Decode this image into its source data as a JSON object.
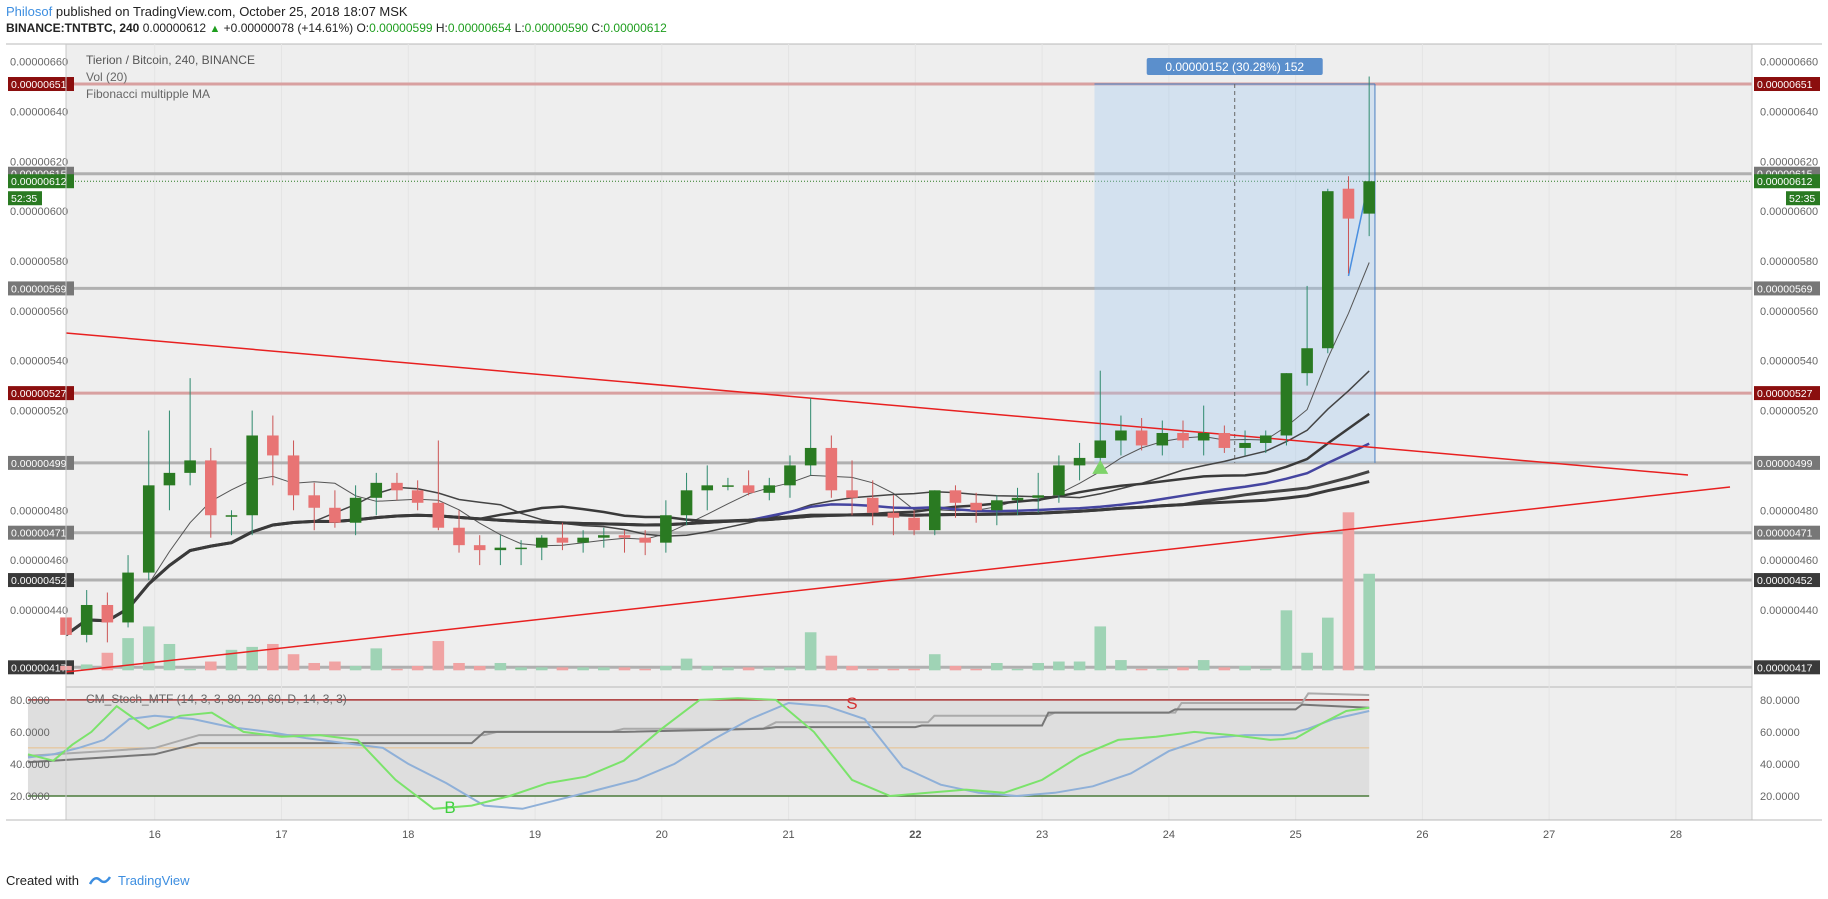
{
  "header": {
    "author": "Philosof",
    "published": "published on TradingView.com, October 25, 2018 18:07 MSK",
    "symbol": "BINANCE:TNTBTC, 240",
    "last": "0.00000612",
    "change": "+0.00000078 (+14.61%)",
    "o_label": "O:",
    "o": "0.00000599",
    "h_label": "H:",
    "h": "0.00000654",
    "l_label": "L:",
    "l": "0.00000590",
    "c_label": "C:",
    "c": "0.00000612"
  },
  "legend": {
    "title": "Tierion / Bitcoin, 240, BINANCE",
    "vol": "Vol (20)",
    "ma": "Fibonacci multipple MA",
    "stoch": "CM_Stoch_MTF (14, 3, 3, 80, 20, 60, D, 14, 3, 3)"
  },
  "measure_label": "0.00000152 (30.28%) 152",
  "countdown": "52:35",
  "footer": {
    "created": "Created with",
    "brand": "TradingView"
  },
  "colors": {
    "up": "#2a7a22",
    "down": "#e87474",
    "up_vol": "#9fd3b5",
    "down_vol": "#f0a3a3",
    "trend": "#e82020",
    "ma_blue": "#4545a0",
    "dark_red_tag": "#8b0e0e",
    "price_tag_green": "#2a7a22"
  },
  "chart_data": [
    {
      "type": "candlestick",
      "title": "Tierion / Bitcoin, 240, BINANCE",
      "x_ticks": [
        {
          "t": 1,
          "label": "16"
        },
        {
          "t": 2,
          "label": "17"
        },
        {
          "t": 3,
          "label": "18"
        },
        {
          "t": 4,
          "label": "19"
        },
        {
          "t": 5,
          "label": "20"
        },
        {
          "t": 6,
          "label": "21"
        },
        {
          "t": 7,
          "label": "22"
        },
        {
          "t": 8,
          "label": "23"
        },
        {
          "t": 9,
          "label": "24"
        },
        {
          "t": 10,
          "label": "25"
        },
        {
          "t": 11,
          "label": "26"
        },
        {
          "t": 12,
          "label": "27"
        },
        {
          "t": 13,
          "label": "28"
        }
      ],
      "x_range": [
        0.3,
        13.6
      ],
      "y_range": [
        4.095e-06,
        6.6705e-06
      ],
      "y_ticks": [
        "0.00000440",
        "0.00000460",
        "0.00000480",
        "0.00000520",
        "0.00000540",
        "0.00000560",
        "0.00000580",
        "0.00000600",
        "0.00000620",
        "0.00000640",
        "0.00000660"
      ],
      "y_tick_values": [
        440,
        460,
        480,
        520,
        540,
        560,
        580,
        600,
        620,
        640,
        660
      ],
      "horizontal_levels": [
        {
          "value": 651,
          "label": "0.00000651",
          "tag": "darkred"
        },
        {
          "value": 615,
          "label": "0.00000615",
          "tag": "gray"
        },
        {
          "value": 612,
          "label": "0.00000612",
          "tag": "green"
        },
        {
          "value": 569,
          "label": "0.00000569",
          "tag": "gray"
        },
        {
          "value": 527,
          "label": "0.00000527",
          "tag": "darkred"
        },
        {
          "value": 499,
          "label": "0.00000499",
          "tag": "gray"
        },
        {
          "value": 471,
          "label": "0.00000471",
          "tag": "gray"
        },
        {
          "value": 452,
          "label": "0.00000452",
          "tag": "dark"
        },
        {
          "value": 417,
          "label": "0.00000417",
          "tag": "dark"
        }
      ],
      "candles_ohlc_e8": [
        [
          437,
          445,
          428,
          430
        ],
        [
          430,
          448,
          427,
          442
        ],
        [
          442,
          447,
          427,
          435
        ],
        [
          435,
          462,
          433,
          455
        ],
        [
          455,
          512,
          452,
          490
        ],
        [
          490,
          520,
          480,
          495
        ],
        [
          495,
          533,
          490,
          500
        ],
        [
          500,
          505,
          469,
          478
        ],
        [
          478,
          480,
          470,
          478
        ],
        [
          478,
          520,
          470,
          510
        ],
        [
          510,
          518,
          490,
          502
        ],
        [
          502,
          508,
          480,
          486
        ],
        [
          486,
          491,
          472,
          481
        ],
        [
          481,
          488,
          473,
          475
        ],
        [
          475,
          490,
          470,
          485
        ],
        [
          485,
          495,
          478,
          491
        ],
        [
          491,
          495,
          484,
          488
        ],
        [
          488,
          492,
          480,
          483
        ],
        [
          483,
          508,
          472,
          473
        ],
        [
          473,
          480,
          463,
          466
        ],
        [
          466,
          470,
          458,
          464
        ],
        [
          464,
          470,
          458,
          465
        ],
        [
          465,
          468,
          458,
          465
        ],
        [
          465,
          470,
          460,
          469
        ],
        [
          469,
          475,
          464,
          467
        ],
        [
          467,
          472,
          463,
          469
        ],
        [
          469,
          473,
          465,
          470
        ],
        [
          470,
          472,
          463,
          469
        ],
        [
          469,
          472,
          462,
          467
        ],
        [
          467,
          484,
          463,
          478
        ],
        [
          478,
          495,
          474,
          488
        ],
        [
          488,
          498,
          480,
          490
        ],
        [
          490,
          493,
          488,
          490
        ],
        [
          490,
          496,
          486,
          487
        ],
        [
          487,
          493,
          484,
          490
        ],
        [
          490,
          502,
          485,
          498
        ],
        [
          498,
          525,
          494,
          505
        ],
        [
          505,
          510,
          485,
          488
        ],
        [
          488,
          500,
          478,
          485
        ],
        [
          485,
          492,
          474,
          479
        ],
        [
          479,
          486,
          470,
          477
        ],
        [
          477,
          480,
          470,
          472
        ],
        [
          472,
          488,
          470,
          488
        ],
        [
          488,
          490,
          477,
          483
        ],
        [
          483,
          487,
          475,
          480
        ],
        [
          480,
          486,
          474,
          484
        ],
        [
          484,
          489,
          478,
          485
        ],
        [
          485,
          495,
          479,
          486
        ],
        [
          486,
          502,
          483,
          498
        ],
        [
          498,
          507,
          492,
          501
        ],
        [
          501,
          536,
          497,
          508
        ],
        [
          508,
          518,
          502,
          512
        ],
        [
          512,
          517,
          504,
          506
        ],
        [
          506,
          516,
          502,
          511
        ],
        [
          511,
          516,
          505,
          508
        ],
        [
          508,
          522,
          502,
          511
        ],
        [
          511,
          514,
          503,
          505
        ],
        [
          505,
          512,
          502,
          507
        ],
        [
          507,
          512,
          503,
          510
        ],
        [
          510,
          535,
          506,
          535
        ],
        [
          535,
          570,
          530,
          545
        ],
        [
          545,
          609,
          543,
          608
        ],
        [
          609,
          614,
          575,
          597
        ],
        [
          599,
          654,
          590,
          612
        ]
      ],
      "volume_raw": [
        3,
        4,
        12,
        22,
        30,
        18,
        1,
        6,
        14,
        16,
        18,
        11,
        5,
        6,
        3,
        15,
        1,
        3,
        20,
        5,
        3,
        5,
        2,
        2,
        2,
        2,
        2,
        2,
        1,
        3,
        8,
        3,
        2,
        2,
        2,
        2,
        26,
        10,
        3,
        1,
        1,
        1,
        11,
        3,
        1,
        5,
        1,
        5,
        6,
        6,
        30,
        7,
        1,
        1,
        2,
        7,
        2,
        3,
        1,
        41,
        12,
        36,
        108,
        66
      ]
    },
    {
      "type": "line",
      "title": "CM_Stoch_MTF (14, 3, 3, 80, 20, 60, D, 14, 3, 3)",
      "y_range": [
        5,
        88
      ],
      "y_ticks": [
        "20.0000",
        "40.0000",
        "60.0000",
        "80.0000"
      ],
      "y_tick_values": [
        20,
        40,
        60,
        80
      ],
      "levels": [
        80,
        50,
        20
      ],
      "markers": [
        {
          "label": "B",
          "t": 3.33,
          "value": 13
        },
        {
          "label": "S",
          "t": 6.5,
          "value": 78
        }
      ],
      "series": [
        {
          "name": "",
          "color": "#7be36b",
          "x": [
            0.0,
            0.2,
            0.35,
            0.5,
            0.7,
            0.95,
            1.2,
            1.45,
            1.7,
            2.0,
            2.3,
            2.6,
            2.9,
            3.2,
            3.5,
            3.8,
            4.1,
            4.4,
            4.7,
            5.0,
            5.3,
            5.6,
            5.9,
            6.2,
            6.5,
            6.8,
            7.1,
            7.4,
            7.7,
            8.0,
            8.3,
            8.6,
            8.9,
            9.2,
            9.5,
            9.8,
            10.0,
            10.2,
            10.4,
            10.58
          ],
          "values": [
            46,
            42,
            52,
            60,
            76,
            62,
            70,
            72,
            60,
            57,
            58,
            55,
            30,
            12,
            14,
            20,
            28,
            32,
            42,
            62,
            80,
            81,
            80,
            60,
            30,
            20,
            22,
            24,
            22,
            30,
            45,
            55,
            57,
            60,
            58,
            55,
            56,
            65,
            73,
            75
          ]
        },
        {
          "name": "",
          "color": "#8fb0d8",
          "x": [
            0.0,
            0.2,
            0.4,
            0.6,
            0.8,
            1.0,
            1.3,
            1.6,
            1.9,
            2.2,
            2.5,
            2.8,
            3.0,
            3.3,
            3.6,
            3.9,
            4.2,
            4.5,
            4.8,
            5.1,
            5.4,
            5.7,
            6.0,
            6.3,
            6.6,
            6.9,
            7.2,
            7.5,
            7.8,
            8.1,
            8.4,
            8.7,
            9.0,
            9.3,
            9.6,
            9.9,
            10.1,
            10.3,
            10.58
          ],
          "values": [
            44,
            46,
            50,
            55,
            68,
            70,
            68,
            63,
            60,
            56,
            53,
            50,
            40,
            28,
            14,
            12,
            18,
            24,
            30,
            40,
            55,
            68,
            78,
            76,
            68,
            38,
            27,
            22,
            20,
            22,
            26,
            34,
            48,
            56,
            58,
            58,
            62,
            68,
            73
          ]
        },
        {
          "name": "",
          "color": "#777777",
          "x": [
            0.0,
            1.0,
            1.35,
            2.0,
            3.5,
            3.6,
            4.7,
            5.8,
            5.9,
            7.0,
            7.05,
            8.0,
            8.05,
            9.0,
            9.05,
            10.0,
            10.05,
            10.58
          ],
          "values": [
            41,
            46,
            53,
            53,
            53,
            60,
            60,
            62,
            63,
            63,
            64,
            64,
            72,
            72,
            74,
            74,
            77,
            75
          ]
        },
        {
          "name": "",
          "color": "#aaaaaa",
          "x": [
            0.0,
            1.0,
            1.35,
            2.2,
            3.6,
            3.7,
            4.6,
            4.7,
            5.8,
            5.9,
            7.1,
            7.15,
            8.05,
            8.1,
            9.05,
            9.1,
            10.05,
            10.1,
            10.58
          ],
          "values": [
            45,
            50,
            58,
            58,
            58,
            60,
            60,
            62,
            62,
            66,
            66,
            70,
            70,
            72,
            72,
            78,
            78,
            84,
            83
          ]
        }
      ]
    }
  ]
}
